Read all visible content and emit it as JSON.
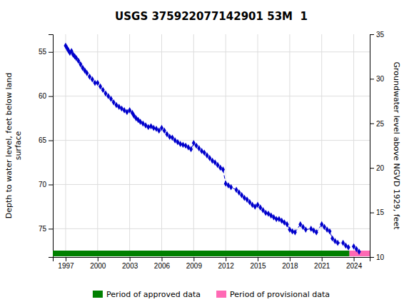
{
  "chart_data": {
    "type": "line",
    "title": "USGS 375922077142901 53M  1",
    "ylabel": "Depth to water level, feet below land\nsurface",
    "y2label": "Groundwater level above NGVD 1929, feet",
    "xlim": [
      1995.8,
      2025.5
    ],
    "xticks": [
      1997,
      2000,
      2003,
      2006,
      2009,
      2012,
      2015,
      2018,
      2021,
      2024
    ],
    "ylim": [
      78.2,
      53.0
    ],
    "yticks": [
      55,
      60,
      65,
      70,
      75
    ],
    "y2lim": [
      10,
      35
    ],
    "y2ticks": [
      35,
      30,
      25,
      20,
      15,
      10
    ],
    "grid": true,
    "legend": "bottom",
    "x": [
      1997.0,
      1997.15,
      1997.25,
      1997.4,
      1997.55,
      1997.7,
      1997.85,
      1998.0,
      1998.2,
      1998.4,
      1998.6,
      1998.8,
      1999.0,
      1999.25,
      1999.5,
      1999.75,
      2000.0,
      2000.25,
      2000.5,
      2000.75,
      2001.0,
      2001.25,
      2001.5,
      2001.75,
      2002.0,
      2002.25,
      2002.5,
      2002.75,
      2003.0,
      2003.25,
      2003.4,
      2003.6,
      2003.8,
      2004.0,
      2004.25,
      2004.5,
      2004.75,
      2005.0,
      2005.25,
      2005.5,
      2005.75,
      2006.0,
      2006.25,
      2006.5,
      2006.75,
      2007.0,
      2007.25,
      2007.5,
      2007.75,
      2008.0,
      2008.25,
      2008.5,
      2008.75,
      2009.0,
      2009.25,
      2009.5,
      2009.75,
      2010.0,
      2010.25,
      2010.5,
      2010.75,
      2011.0,
      2011.25,
      2011.5,
      2011.75,
      2012.0,
      2012.25,
      2012.5,
      2013.0,
      2013.25,
      2013.5,
      2013.75,
      2014.0,
      2014.25,
      2014.5,
      2014.75,
      2015.0,
      2015.25,
      2015.5,
      2015.75,
      2016.0,
      2016.25,
      2016.5,
      2016.75,
      2017.0,
      2017.25,
      2017.5,
      2017.75,
      2018.0,
      2018.25,
      2018.5,
      2019.0,
      2019.25,
      2019.5,
      2020.0,
      2020.25,
      2020.5,
      2021.0,
      2021.25,
      2021.5,
      2021.75,
      2022.0,
      2022.25,
      2022.5,
      2023.0,
      2023.25,
      2023.5,
      2024.0,
      2024.25,
      2024.5
    ],
    "series": [
      {
        "color": "#0000CC",
        "marker": "diamond",
        "line_style": "dashed",
        "values": [
          54.3,
          54.6,
          54.8,
          55.1,
          54.9,
          55.3,
          55.5,
          55.7,
          56.0,
          56.4,
          56.8,
          57.1,
          57.4,
          57.8,
          58.1,
          58.5,
          58.5,
          58.9,
          59.3,
          59.7,
          60.0,
          60.3,
          60.7,
          61.0,
          61.2,
          61.4,
          61.6,
          61.8,
          61.6,
          61.9,
          62.2,
          62.5,
          62.7,
          62.9,
          63.1,
          63.3,
          63.5,
          63.4,
          63.6,
          63.7,
          63.9,
          63.6,
          63.9,
          64.3,
          64.6,
          64.7,
          65.0,
          65.2,
          65.4,
          65.5,
          65.6,
          65.8,
          66.0,
          65.3,
          65.6,
          65.9,
          66.2,
          66.4,
          66.7,
          67.0,
          67.3,
          67.5,
          67.8,
          68.1,
          68.3,
          69.9,
          70.1,
          70.3,
          70.6,
          70.9,
          71.2,
          71.5,
          71.7,
          72.0,
          72.3,
          72.5,
          72.3,
          72.6,
          72.9,
          73.2,
          73.3,
          73.5,
          73.7,
          73.9,
          73.9,
          74.1,
          74.3,
          74.5,
          75.1,
          75.3,
          75.4,
          74.5,
          74.8,
          75.1,
          75.0,
          75.2,
          75.4,
          74.5,
          74.8,
          75.1,
          75.3,
          76.1,
          76.4,
          76.6,
          76.6,
          76.9,
          77.1,
          77.0,
          77.3,
          77.6
        ]
      }
    ],
    "periods": [
      {
        "name": "Period of approved data",
        "color": "#008000",
        "start": 1995.8,
        "end": 2023.6
      },
      {
        "name": "Period of provisional data",
        "color": "#FF69B4",
        "start": 2023.6,
        "end": 2025.5
      }
    ]
  }
}
